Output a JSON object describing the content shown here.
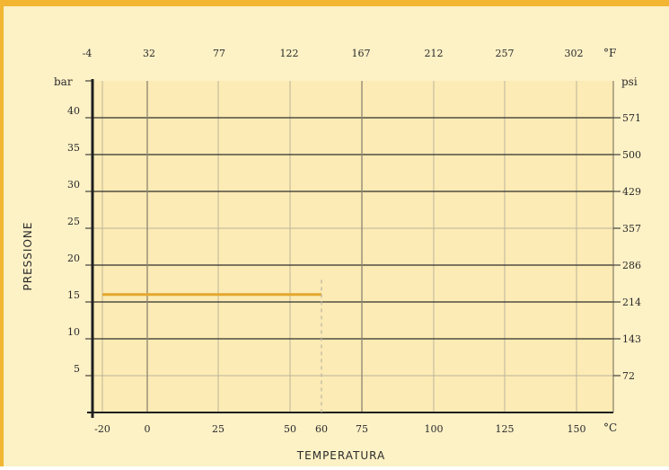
{
  "colors": {
    "frame": "#f2b632",
    "background": "#fdf1c6",
    "plot": "#fcebb4",
    "grid_major": "#2f2f2f",
    "grid_minor": "#bdb59c",
    "series": "#e3a82e"
  },
  "chart_data": {
    "type": "line",
    "title": "",
    "xlabel": "TEMPERATURA",
    "ylabel": "PRESSIONE",
    "units": {
      "x_bottom": "°C",
      "x_top": "°F",
      "y_left": "bar",
      "y_right": "psi"
    },
    "xlim": [
      -20,
      160
    ],
    "ylim": [
      0,
      45
    ],
    "x_ticks_bottom": [
      "-20",
      "0",
      "25",
      "50",
      "60",
      "75",
      "100",
      "125",
      "150"
    ],
    "x_ticks_top": [
      "-4",
      "32",
      "77",
      "122",
      "167",
      "212",
      "257",
      "302"
    ],
    "y_ticks_left": [
      "5",
      "10",
      "15",
      "20",
      "25",
      "30",
      "35",
      "40"
    ],
    "y_ticks_right": [
      "72",
      "143",
      "214",
      "286",
      "357",
      "429",
      "500",
      "571"
    ],
    "series": [
      {
        "x": [
          -20,
          60
        ],
        "y": [
          16,
          16
        ]
      }
    ],
    "limit_marker_x": 60,
    "grid": true
  }
}
